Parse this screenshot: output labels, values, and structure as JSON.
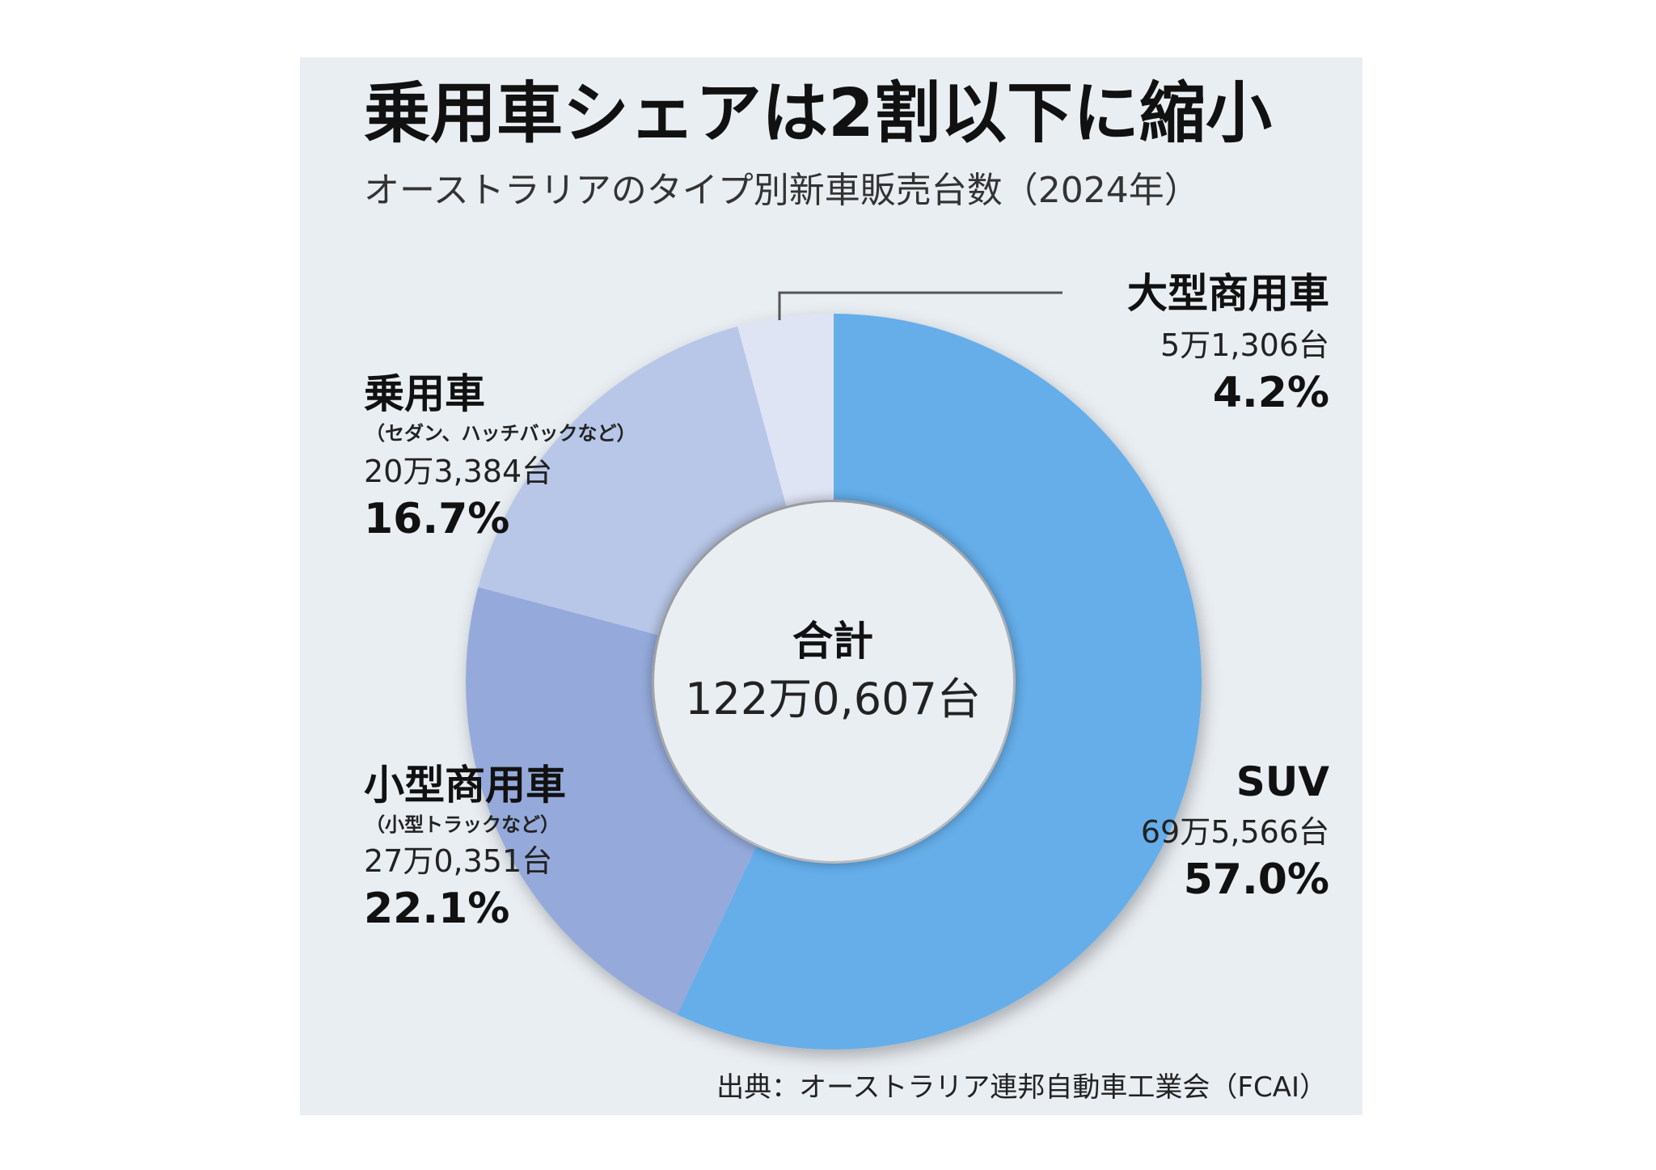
{
  "header": {
    "title": "乗用車シェアは2割以下に縮小",
    "subtitle": "オーストラリアのタイプ別新車販売台数（2024年）"
  },
  "center": {
    "title": "合計",
    "value": "122万0,607台"
  },
  "source": "出典：オーストラリア連邦自動車工業会（FCAI）",
  "colors": {
    "suv": "#65aeea",
    "light_commercial": "#95aadb",
    "passenger": "#b8c7e8",
    "heavy_commercial": "#dfe4f5",
    "panel_bg": "#e9eef3"
  },
  "labels": {
    "heavy": {
      "name": "大型商用車",
      "count": "5万1,306台",
      "pct": "4.2%"
    },
    "passenger": {
      "name": "乗用車",
      "note": "（セダン、ハッチバックなど）",
      "count": "20万3,384台",
      "pct": "16.7%"
    },
    "light": {
      "name": "小型商用車",
      "note": "（小型トラックなど）",
      "count": "27万0,351台",
      "pct": "22.1%"
    },
    "suv": {
      "name": "SUV",
      "count": "69万5,566台",
      "pct": "57.0%"
    }
  },
  "chart_data": {
    "type": "pie",
    "donut": true,
    "title": "乗用車シェアは2割以下に縮小",
    "subtitle": "オーストラリアのタイプ別新車販売台数（2024年）",
    "total": 1220607,
    "slices": [
      {
        "name": "SUV",
        "count": 695566,
        "share": 57.0,
        "color": "#65aeea"
      },
      {
        "name": "小型商用車",
        "count": 270351,
        "share": 22.1,
        "color": "#95aadb"
      },
      {
        "name": "乗用車",
        "count": 203384,
        "share": 16.7,
        "color": "#b8c7e8"
      },
      {
        "name": "大型商用車",
        "count": 51306,
        "share": 4.2,
        "color": "#dfe4f5"
      }
    ]
  }
}
